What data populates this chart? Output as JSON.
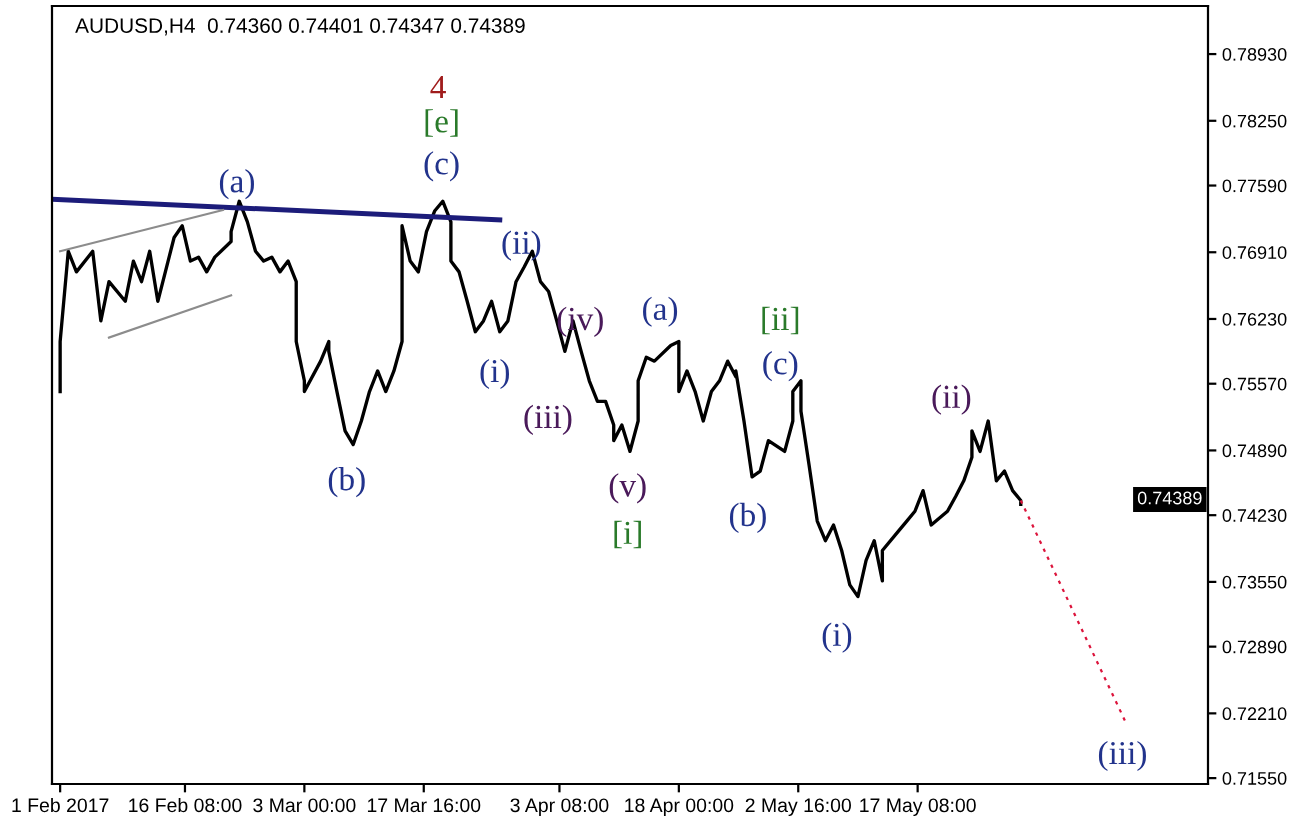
{
  "chart_data": {
    "type": "line",
    "title": "AUDUSD,H4  0.74360 0.74401 0.74347 0.74389",
    "xlim": [
      "2017-01-31",
      "2017-06-22"
    ],
    "ylim": [
      0.7149,
      0.7942
    ],
    "xticks": [
      {
        "value": "2017-02-01",
        "label": "1 Feb 2017"
      },
      {
        "value": "2017-02-16T08:00",
        "label": "16 Feb 08:00"
      },
      {
        "value": "2017-03-03",
        "label": "3 Mar 00:00"
      },
      {
        "value": "2017-03-17T16:00",
        "label": "17 Mar 16:00"
      },
      {
        "value": "2017-04-03T08:00",
        "label": "3 Apr 08:00"
      },
      {
        "value": "2017-04-18",
        "label": "18 Apr 00:00"
      },
      {
        "value": "2017-05-02T16:00",
        "label": "2 May 16:00"
      },
      {
        "value": "2017-05-17T08:00",
        "label": "17 May 08:00"
      }
    ],
    "yticks": [
      {
        "value": 0.7893,
        "label": "0.78930"
      },
      {
        "value": 0.7825,
        "label": "0.78250"
      },
      {
        "value": 0.7759,
        "label": "0.77590"
      },
      {
        "value": 0.7691,
        "label": "0.76910"
      },
      {
        "value": 0.7623,
        "label": "0.76230"
      },
      {
        "value": 0.7557,
        "label": "0.75570"
      },
      {
        "value": 0.7489,
        "label": "0.74890"
      },
      {
        "value": 0.7423,
        "label": "0.74230"
      },
      {
        "value": 0.7355,
        "label": "0.73550"
      },
      {
        "value": 0.7289,
        "label": "0.72890"
      },
      {
        "value": 0.7221,
        "label": "0.72210"
      },
      {
        "value": 0.7155,
        "label": "0.71550"
      }
    ],
    "grid": false,
    "legend": false,
    "marker": "none",
    "series": [
      {
        "color": "#000000",
        "line_style": "solid",
        "x": [
          "2017-02-01",
          "2017-02-01",
          "2017-02-02",
          "2017-02-03",
          "2017-02-05",
          "2017-02-06",
          "2017-02-07",
          "2017-02-09",
          "2017-02-10",
          "2017-02-11",
          "2017-02-12",
          "2017-02-13",
          "2017-02-15",
          "2017-02-16",
          "2017-02-17",
          "2017-02-18",
          "2017-02-19",
          "2017-02-20",
          "2017-02-22",
          "2017-02-22",
          "2017-02-23",
          "2017-02-24",
          "2017-02-25",
          "2017-02-26",
          "2017-02-27",
          "2017-02-28",
          "2017-03-01",
          "2017-03-02",
          "2017-03-02",
          "2017-03-03",
          "2017-03-03",
          "2017-03-05",
          "2017-03-06",
          "2017-03-06",
          "2017-03-07",
          "2017-03-08",
          "2017-03-09",
          "2017-03-10",
          "2017-03-11",
          "2017-03-12",
          "2017-03-13",
          "2017-03-14",
          "2017-03-15",
          "2017-03-15",
          "2017-03-16",
          "2017-03-17",
          "2017-03-18",
          "2017-03-19",
          "2017-03-20",
          "2017-03-21",
          "2017-03-21",
          "2017-03-22",
          "2017-03-23",
          "2017-03-24",
          "2017-03-25",
          "2017-03-26",
          "2017-03-27",
          "2017-03-28",
          "2017-03-29",
          "2017-03-30",
          "2017-03-31",
          "2017-04-01",
          "2017-04-02",
          "2017-04-03",
          "2017-04-04",
          "2017-04-05",
          "2017-04-06",
          "2017-04-07",
          "2017-04-08",
          "2017-04-09",
          "2017-04-10",
          "2017-04-10",
          "2017-04-11",
          "2017-04-12",
          "2017-04-13",
          "2017-04-13",
          "2017-04-14",
          "2017-04-15",
          "2017-04-17",
          "2017-04-18",
          "2017-04-18",
          "2017-04-19",
          "2017-04-20",
          "2017-04-21",
          "2017-04-22",
          "2017-04-23",
          "2017-04-24",
          "2017-04-25",
          "2017-04-25",
          "2017-04-26",
          "2017-04-27",
          "2017-04-28",
          "2017-04-29",
          "2017-05-01",
          "2017-05-02",
          "2017-05-02",
          "2017-05-03",
          "2017-05-03",
          "2017-05-04",
          "2017-05-05",
          "2017-05-06",
          "2017-05-07",
          "2017-05-08",
          "2017-05-09",
          "2017-05-10",
          "2017-05-11",
          "2017-05-12",
          "2017-05-13",
          "2017-05-13",
          "2017-05-15",
          "2017-05-16",
          "2017-05-17",
          "2017-05-18",
          "2017-05-19",
          "2017-05-21",
          "2017-05-22",
          "2017-05-23",
          "2017-05-24",
          "2017-05-24",
          "2017-05-25",
          "2017-05-26",
          "2017-05-27",
          "2017-05-28",
          "2017-05-29",
          "2017-05-30",
          "2017-05-30"
        ],
        "values": [
          0.7549,
          0.76,
          0.7692,
          0.7671,
          0.7692,
          0.7621,
          0.7661,
          0.7641,
          0.7682,
          0.7661,
          0.7692,
          0.7641,
          0.7706,
          0.7718,
          0.7682,
          0.7686,
          0.7671,
          0.7686,
          0.7702,
          0.7712,
          0.7743,
          0.7722,
          0.7692,
          0.7682,
          0.7686,
          0.7671,
          0.7682,
          0.7661,
          0.76,
          0.756,
          0.7549,
          0.758,
          0.76,
          0.759,
          0.7549,
          0.7509,
          0.7495,
          0.7519,
          0.7549,
          0.757,
          0.7549,
          0.757,
          0.76,
          0.7718,
          0.7682,
          0.7671,
          0.7712,
          0.7733,
          0.7743,
          0.7722,
          0.7682,
          0.7671,
          0.7641,
          0.761,
          0.7621,
          0.7641,
          0.761,
          0.7621,
          0.7661,
          0.7676,
          0.7692,
          0.7661,
          0.7651,
          0.7621,
          0.759,
          0.7621,
          0.759,
          0.756,
          0.7539,
          0.7539,
          0.7515,
          0.7499,
          0.7515,
          0.7488,
          0.7519,
          0.756,
          0.7584,
          0.758,
          0.7596,
          0.76,
          0.7549,
          0.757,
          0.7549,
          0.7519,
          0.7549,
          0.756,
          0.758,
          0.7564,
          0.757,
          0.7519,
          0.7462,
          0.7468,
          0.7499,
          0.7488,
          0.7519,
          0.7549,
          0.756,
          0.7529,
          0.7474,
          0.7417,
          0.7397,
          0.7413,
          0.7387,
          0.7352,
          0.734,
          0.7377,
          0.7397,
          0.7356,
          0.7387,
          0.7407,
          0.7417,
          0.7427,
          0.7448,
          0.7413,
          0.7427,
          0.7442,
          0.7458,
          0.7482,
          0.7509,
          0.7488,
          0.7519,
          0.7458,
          0.7468,
          0.7448,
          0.7438,
          0.7434
        ]
      },
      {
        "color": "#1c1c7a",
        "line_style": "solid",
        "x": [
          "2017-01-31",
          "2017-03-27"
        ],
        "values": [
          0.7745,
          0.7724
        ]
      },
      {
        "color": "#8c8c8c",
        "line_style": "solid",
        "x": [
          "2017-02-01",
          "2017-02-21"
        ],
        "values": [
          0.7692,
          0.7734
        ]
      },
      {
        "color": "#8c8c8c",
        "line_style": "solid",
        "x": [
          "2017-02-07",
          "2017-02-22"
        ],
        "values": [
          0.7604,
          0.7647
        ]
      },
      {
        "color": "#dc143c",
        "line_style": "dotted",
        "x": [
          "2017-05-30",
          "2017-06-12"
        ],
        "values": [
          0.7438,
          0.721
        ]
      }
    ],
    "annotations": [
      "4",
      "[e]",
      "(c)",
      "(a)",
      "(b)",
      "(ii)",
      "(i)",
      "(iv)",
      "(iii)",
      "(v)",
      "[i]",
      "(a)",
      "[ii]",
      "(c)",
      "(b)",
      "(i)",
      "(ii)",
      "(iii)",
      "0.74389"
    ]
  }
}
